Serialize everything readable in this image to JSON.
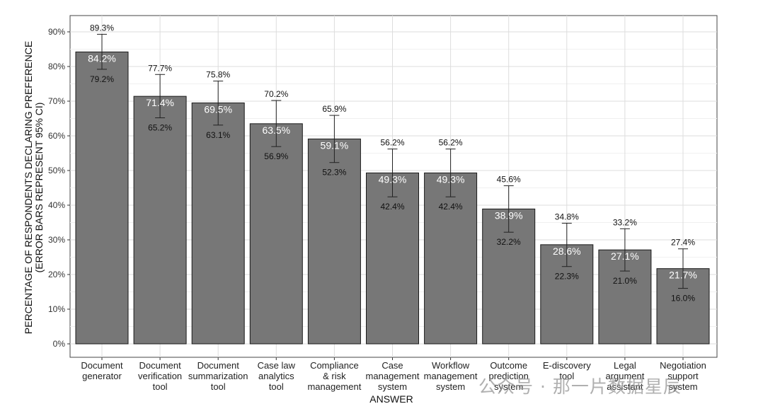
{
  "chart_data": {
    "type": "bar",
    "xlabel": "ANSWER",
    "ylabel_lines": [
      "PERCENTAGE OF RESPONDENTS DECLARING PREFERENCE",
      "(ERROR BARS REPRESENT 95% CI)"
    ],
    "ylim": [
      0,
      95
    ],
    "y_ticks": [
      0,
      10,
      20,
      30,
      40,
      50,
      60,
      70,
      80,
      90
    ],
    "y_tick_labels": [
      "0%",
      "10%",
      "20%",
      "30%",
      "40%",
      "50%",
      "60%",
      "70%",
      "80%",
      "90%"
    ],
    "grid": true,
    "bar_color": "#777777",
    "categories": [
      [
        "Document",
        "generator"
      ],
      [
        "Document",
        "verification",
        "tool"
      ],
      [
        "Document",
        "summarization",
        "tool"
      ],
      [
        "Case law",
        "analytics",
        "tool"
      ],
      [
        "Compliance",
        "& risk",
        "management"
      ],
      [
        "Case",
        "management",
        "system"
      ],
      [
        "Workflow",
        "management",
        "system"
      ],
      [
        "Outcome",
        "prediction",
        "system"
      ],
      [
        "E-discovery",
        "tool"
      ],
      [
        "Legal",
        "argument",
        "assistant"
      ],
      [
        "Negotiation",
        "support",
        "system"
      ]
    ],
    "values": [
      84.2,
      71.4,
      69.5,
      63.5,
      59.1,
      49.3,
      49.3,
      38.9,
      28.6,
      27.1,
      21.7
    ],
    "value_labels": [
      "84.2%",
      "71.4%",
      "69.5%",
      "63.5%",
      "59.1%",
      "49.3%",
      "49.3%",
      "38.9%",
      "28.6%",
      "27.1%",
      "21.7%"
    ],
    "ci_upper": [
      89.3,
      77.7,
      75.8,
      70.2,
      65.9,
      56.2,
      56.2,
      45.6,
      34.8,
      33.2,
      27.4
    ],
    "ci_upper_labels": [
      "89.3%",
      "77.7%",
      "75.8%",
      "70.2%",
      "65.9%",
      "56.2%",
      "56.2%",
      "45.6%",
      "34.8%",
      "33.2%",
      "27.4%"
    ],
    "ci_lower": [
      79.2,
      65.2,
      63.1,
      56.9,
      52.3,
      42.4,
      42.4,
      32.2,
      22.3,
      21.0,
      16.0
    ],
    "ci_lower_labels": [
      "79.2%",
      "65.2%",
      "63.1%",
      "56.9%",
      "52.3%",
      "42.4%",
      "42.4%",
      "32.2%",
      "22.3%",
      "21.0%",
      "16.0%"
    ]
  },
  "watermark": "公众号 · 那一片数据星辰"
}
